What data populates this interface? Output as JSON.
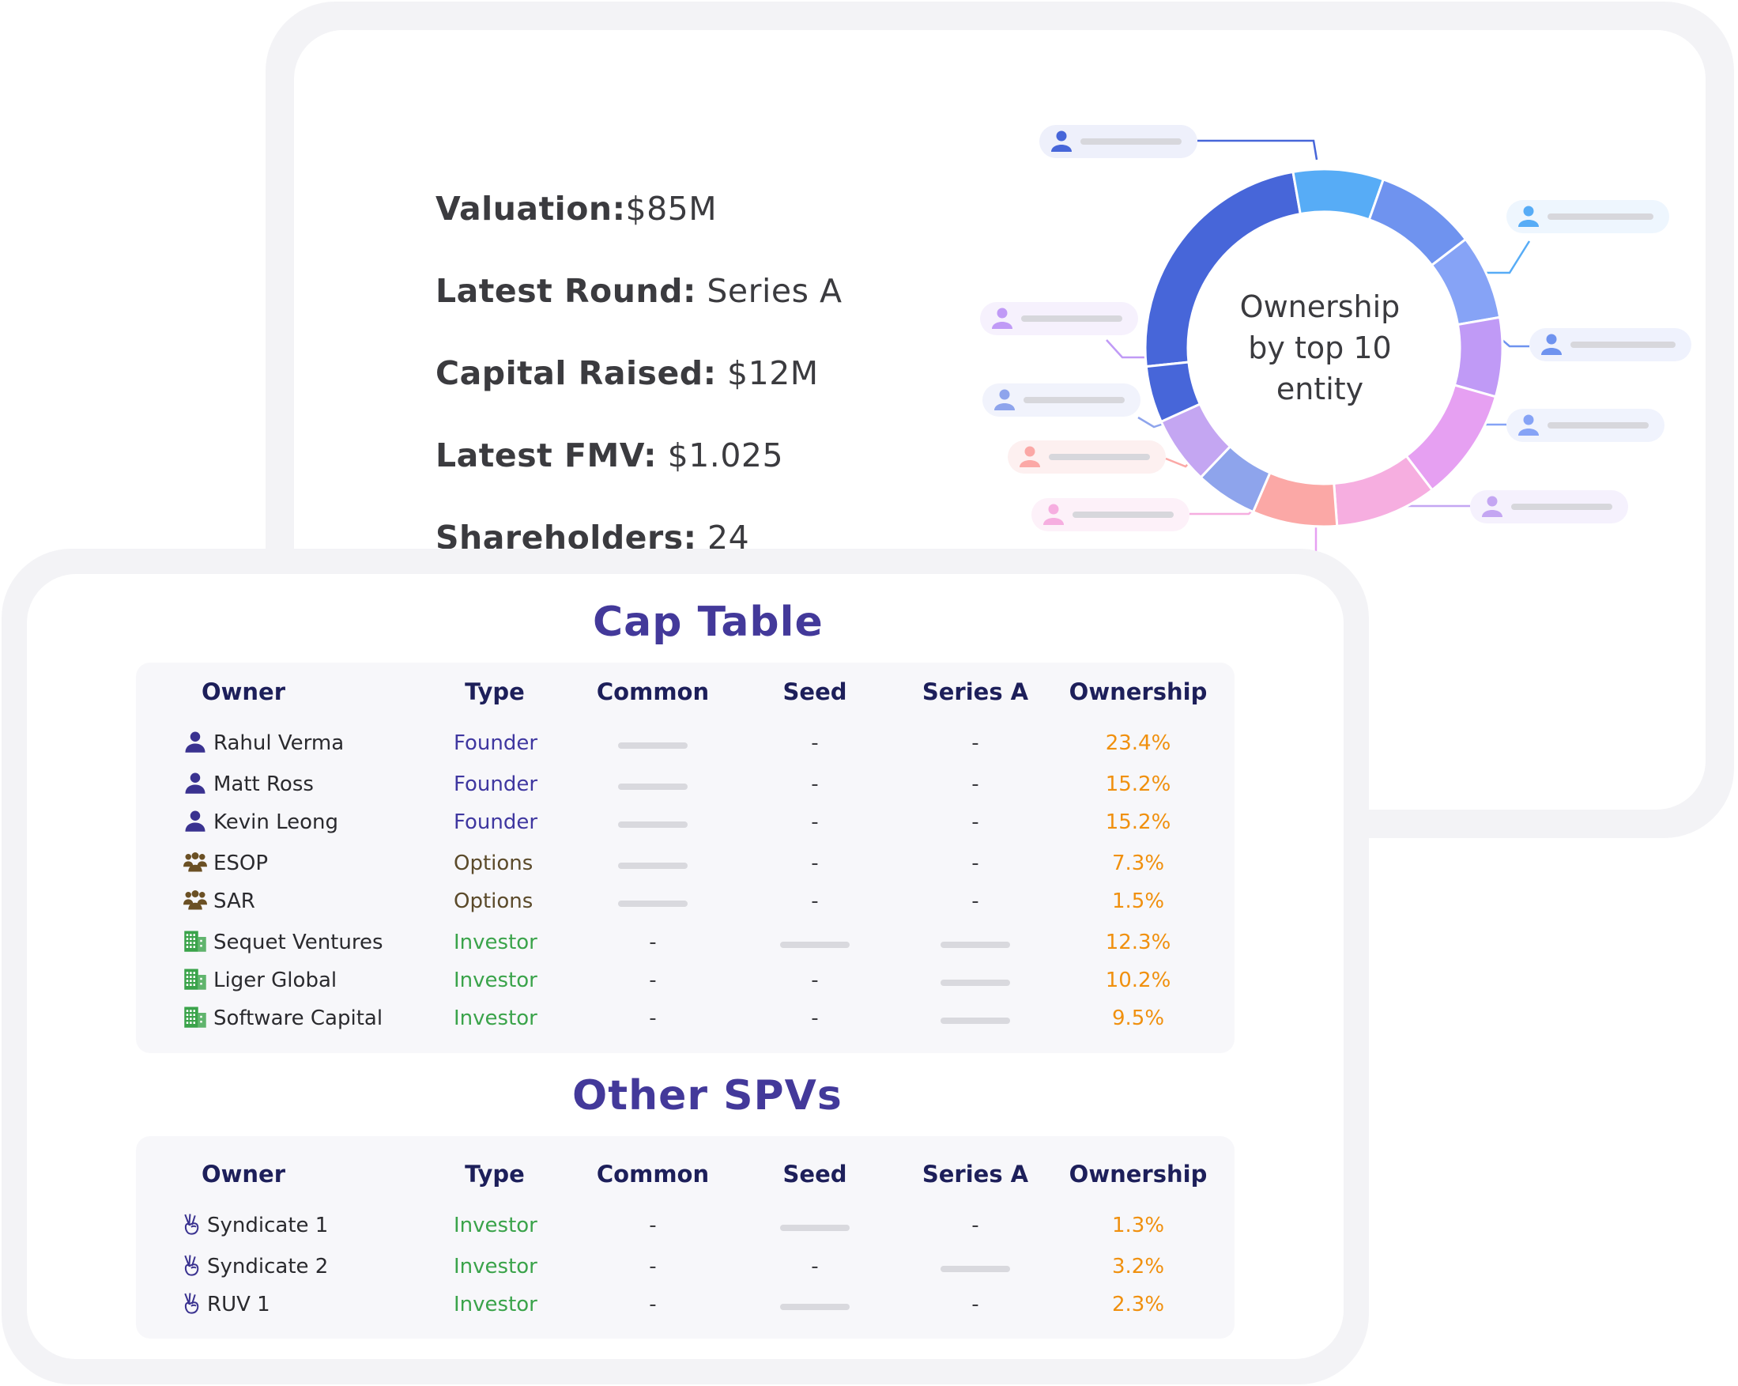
{
  "summary": {
    "valuation_label": "Valuation:",
    "valuation_value": "$85M",
    "round_label": "Latest Round:",
    "round_value": " Series A",
    "capital_label": "Capital Raised:",
    "capital_value": " $12M",
    "fmv_label": "Latest FMV:",
    "fmv_value": " $1.025",
    "shareholders_label": "Shareholders:",
    "shareholders_value": " 24"
  },
  "chart": {
    "center_line1": "Ownership",
    "center_line2": "by top 10",
    "center_line3": "entity"
  },
  "chart_data": {
    "type": "pie",
    "title": "Ownership by top 10 entity",
    "values": [
      23.4,
      8.0,
      9.0,
      7.5,
      7.0,
      10.0,
      9.0,
      7.5,
      5.5,
      6.0,
      5.0
    ],
    "colors": [
      "#4766d9",
      "#57acf6",
      "#6f93ef",
      "#86a3f6",
      "#c09af6",
      "#e6a0f2",
      "#f6aee0",
      "#fba8a6",
      "#8ea4ec",
      "#c4a6f2",
      "#4766d9"
    ]
  },
  "cap_table": {
    "title": "Cap Table",
    "headers": [
      "Owner",
      "Type",
      "Common",
      "Seed",
      "Series A",
      "Ownership"
    ],
    "rows": [
      {
        "icon": "person-icon",
        "owner": "Rahul Verma",
        "type": "Founder",
        "common": "bar",
        "seed": "-",
        "series_a": "-",
        "ownership": "23.4%"
      },
      {
        "icon": "person-icon",
        "owner": "Matt Ross",
        "type": "Founder",
        "common": "bar",
        "seed": "-",
        "series_a": "-",
        "ownership": "15.2%"
      },
      {
        "icon": "person-icon",
        "owner": "Kevin Leong",
        "type": "Founder",
        "common": "bar",
        "seed": "-",
        "series_a": "-",
        "ownership": "15.2%"
      },
      {
        "icon": "group-icon",
        "owner": "ESOP",
        "type": "Options",
        "common": "bar",
        "seed": "-",
        "series_a": "-",
        "ownership": "7.3%"
      },
      {
        "icon": "group-icon",
        "owner": "SAR",
        "type": "Options",
        "common": "bar",
        "seed": "-",
        "series_a": "-",
        "ownership": "1.5%"
      },
      {
        "icon": "building-icon",
        "owner": "Sequet Ventures",
        "type": "Investor",
        "common": "-",
        "seed": "bar",
        "series_a": "bar",
        "ownership": "12.3%"
      },
      {
        "icon": "building-icon",
        "owner": "Liger Global",
        "type": "Investor",
        "common": "-",
        "seed": "-",
        "series_a": "bar",
        "ownership": "10.2%"
      },
      {
        "icon": "building-icon",
        "owner": "Software Capital",
        "type": "Investor",
        "common": "-",
        "seed": "-",
        "series_a": "bar",
        "ownership": "9.5%"
      }
    ]
  },
  "spv_table": {
    "title": "Other SPVs",
    "headers": [
      "Owner",
      "Type",
      "Common",
      "Seed",
      "Series A",
      "Ownership"
    ],
    "rows": [
      {
        "icon": "victory-hand-icon",
        "owner": "Syndicate 1",
        "type": "Investor",
        "common": "-",
        "seed": "bar",
        "series_a": "-",
        "ownership": "1.3%"
      },
      {
        "icon": "victory-hand-icon",
        "owner": "Syndicate 2",
        "type": "Investor",
        "common": "-",
        "seed": "-",
        "series_a": "bar",
        "ownership": "3.2%"
      },
      {
        "icon": "victory-hand-icon",
        "owner": "RUV 1",
        "type": "Investor",
        "common": "-",
        "seed": "bar",
        "series_a": "-",
        "ownership": "2.3%"
      }
    ]
  },
  "colors": {
    "title": "#43399a",
    "header": "#1d1f5a",
    "founder": "#3f37a0",
    "options": "#5b4a2a",
    "investor": "#3aa34a",
    "ownership": "#f0900e",
    "person_icon": "#3a3290",
    "group_icon": "#6b5024",
    "building_icon": "#3aa34a"
  }
}
